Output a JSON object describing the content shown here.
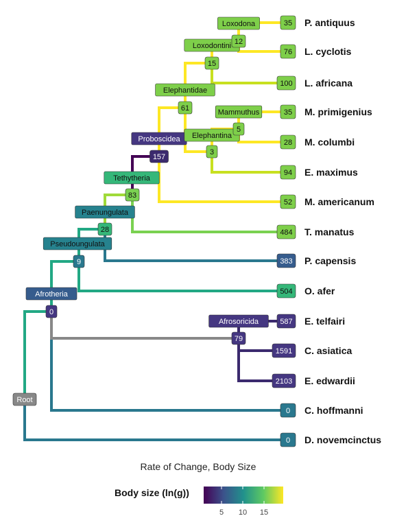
{
  "caption": "Rate of Change, Body Size",
  "legend": {
    "title": "Body size (ln(g))",
    "ticks": [
      "5",
      "10",
      "15"
    ]
  },
  "tips": [
    {
      "id": "antiquus",
      "label": "P. antiquus",
      "value": "35"
    },
    {
      "id": "cyclotis",
      "label": "L. cyclotis",
      "value": "76"
    },
    {
      "id": "africana",
      "label": "L. africana",
      "value": "100"
    },
    {
      "id": "primigenius",
      "label": "M. primigenius",
      "value": "35"
    },
    {
      "id": "columbi",
      "label": "M. columbi",
      "value": "28"
    },
    {
      "id": "maximus",
      "label": "E. maximus",
      "value": "94"
    },
    {
      "id": "americanum",
      "label": "M. americanum",
      "value": "52"
    },
    {
      "id": "manatus",
      "label": "T. manatus",
      "value": "484"
    },
    {
      "id": "capensis",
      "label": "P. capensis",
      "value": "383"
    },
    {
      "id": "afer",
      "label": "O. afer",
      "value": "504"
    },
    {
      "id": "telfairi",
      "label": "E. telfairi",
      "value": "587"
    },
    {
      "id": "asiatica",
      "label": "C. asiatica",
      "value": "1591"
    },
    {
      "id": "edwardii",
      "label": "E. edwardii",
      "value": "2103"
    },
    {
      "id": "hoffmanni",
      "label": "C. hoffmanni",
      "value": "0"
    },
    {
      "id": "novemcinctus",
      "label": "D. novemcinctus",
      "value": "0"
    }
  ],
  "nodes": [
    {
      "id": "root",
      "value": "Root"
    },
    {
      "id": "afrotheria",
      "clade": "Afrotheria",
      "value": "0"
    },
    {
      "id": "pseudoungulata",
      "clade": "Pseudoungulata",
      "value": "9"
    },
    {
      "id": "paenungulata",
      "clade": "Paenungulata",
      "value": "28"
    },
    {
      "id": "tethytheria",
      "clade": "Tethytheria",
      "value": "83"
    },
    {
      "id": "proboscidea",
      "clade": "Proboscidea",
      "value": "157"
    },
    {
      "id": "elephantidae",
      "clade": "Elephantidae",
      "value": "61"
    },
    {
      "id": "loxodontini",
      "clade": "Loxodontini",
      "value": "15"
    },
    {
      "id": "loxodona",
      "clade": "Loxodona",
      "value": "12"
    },
    {
      "id": "elephantina",
      "clade": "Elephantina",
      "value": "3"
    },
    {
      "id": "mammuthus",
      "clade": "Mammuthus",
      "value": "5"
    },
    {
      "id": "afrosoricida",
      "clade": "Afrosoricida",
      "value": "79"
    }
  ],
  "colors": {
    "v_dark": "#440154",
    "v_indigo": "#3b2a6e",
    "v_purple": "#453781",
    "v_blue": "#365c8d",
    "v_teal": "#2a788e",
    "v_teal2": "#26828e",
    "v_green": "#22a884",
    "v_green2": "#35b779",
    "v_lime": "#7ad151",
    "v_lime2": "#a0da39",
    "v_yellowgreen": "#c8e020",
    "v_yellow": "#fde725",
    "grey": "#888888",
    "label_fill": "#7ecf4a"
  }
}
